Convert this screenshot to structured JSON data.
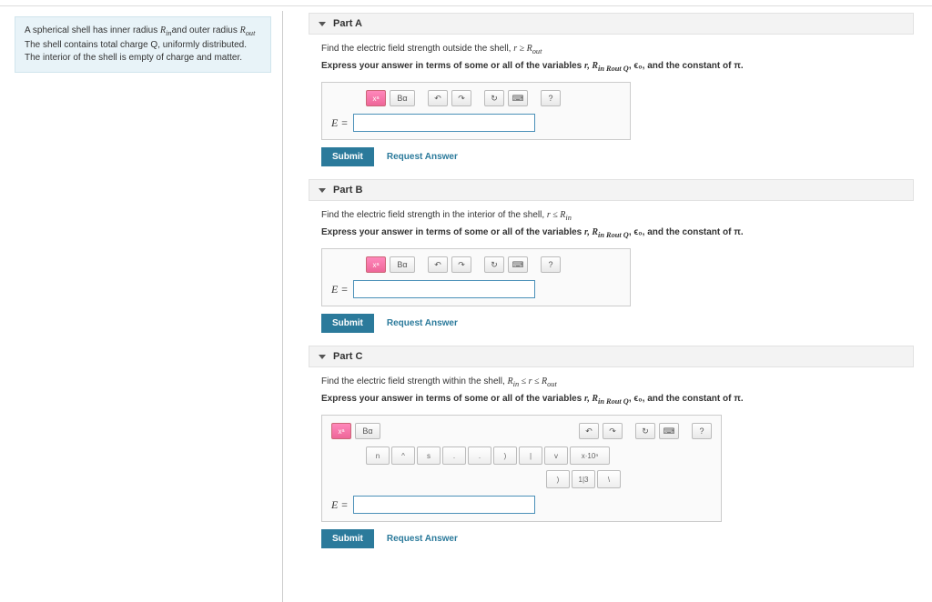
{
  "problem": {
    "line1_a": "A spherical shell has inner radius ",
    "line1_b": "and outer radius ",
    "rin": "R",
    "rin_sub": "in",
    "rout": "R",
    "rout_sub": "out",
    "line2": "The shell contains total charge Q, uniformly distributed.",
    "line3": "The interior of the shell is empty of charge and matter."
  },
  "parts": [
    {
      "title": "Part A",
      "prompt_a": "Find the electric field strength outside the shell, ",
      "prompt_cond": "r ≥ R",
      "prompt_sub": "out",
      "instruct_a": "Express your answer in terms of some or all of the variables ",
      "instruct_vars": "r, R",
      "instruct_b": ", ϵ₀, and the constant of π.",
      "eq": "E =",
      "submit": "Submit",
      "request": "Request Answer",
      "expanded": false
    },
    {
      "title": "Part B",
      "prompt_a": "Find the electric field strength in the interior of the shell, ",
      "prompt_cond": "r ≤ R",
      "prompt_sub": "in",
      "instruct_a": "Express your answer in terms of some or all of the variables ",
      "instruct_vars": "r, R",
      "instruct_b": ", ϵ₀, and the constant of π.",
      "eq": "E =",
      "submit": "Submit",
      "request": "Request Answer",
      "expanded": false
    },
    {
      "title": "Part C",
      "prompt_a": "Find the electric field strength within the shell, ",
      "prompt_cond": "R",
      "prompt_mid": " ≤ r ≤ R",
      "prompt_sub1": "in",
      "prompt_sub2": "out",
      "instruct_a": "Express your answer in terms of some or all of the variables ",
      "instruct_vars": "r, R",
      "instruct_b": ", ϵ₀, and the constant of π.",
      "eq": "E =",
      "submit": "Submit",
      "request": "Request Answer",
      "expanded": true,
      "sci": "x·10ⁿ"
    }
  ],
  "toolbar": {
    "xa": "xᵃ",
    "be": "Βα",
    "undo": "↶",
    "redo": "↷",
    "reset": "↻",
    "kbd": "⌨",
    "help": "?"
  },
  "instruct_subs": "in Rout Q"
}
